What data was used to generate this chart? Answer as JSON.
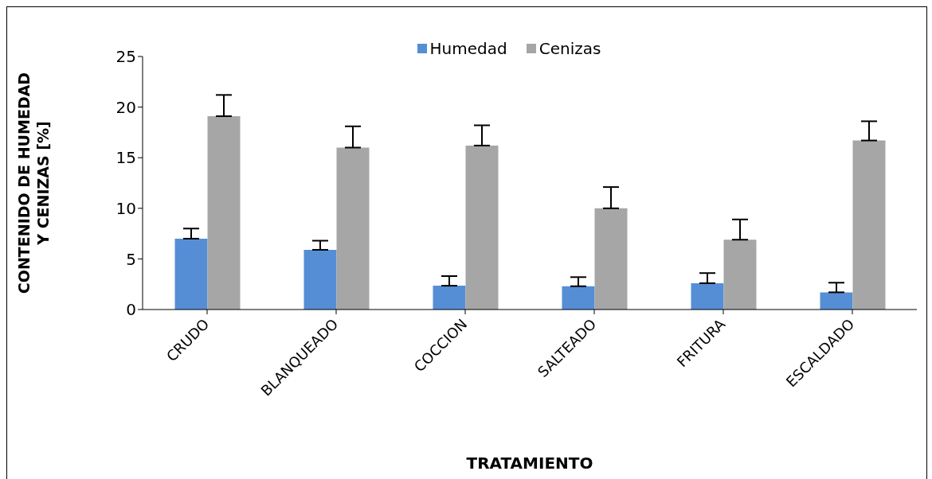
{
  "chart_data": {
    "type": "bar",
    "xlabel": "TRATAMIENTO",
    "ylabel": "CONTENIDO DE HUMEDAD\nY CENIZAS [%]",
    "categories": [
      "CRUDO",
      "BLANQUEADO",
      "COCCION",
      "SALTEADO",
      "FRITURA",
      "ESCALDADO"
    ],
    "series": [
      {
        "name": "Humedad",
        "color": "#558ed5",
        "values": [
          7.0,
          5.9,
          2.35,
          2.3,
          2.6,
          1.7
        ],
        "errors": [
          [
            7.0,
            8.0
          ],
          [
            5.9,
            6.8
          ],
          [
            2.35,
            3.3
          ],
          [
            2.3,
            3.2
          ],
          [
            2.6,
            3.6
          ],
          [
            1.7,
            2.65
          ]
        ]
      },
      {
        "name": "Cenizas",
        "color": "#a6a6a6",
        "values": [
          19.1,
          16.0,
          16.2,
          10.0,
          6.9,
          16.7
        ],
        "errors": [
          [
            19.1,
            21.2
          ],
          [
            16.0,
            18.1
          ],
          [
            16.2,
            18.2
          ],
          [
            10.0,
            12.1
          ],
          [
            6.9,
            8.9
          ],
          [
            16.7,
            18.6
          ]
        ]
      }
    ],
    "ylim": [
      0,
      25
    ],
    "yticks": [
      0,
      5,
      10,
      15,
      20,
      25
    ],
    "grid": false,
    "legend": "top"
  }
}
